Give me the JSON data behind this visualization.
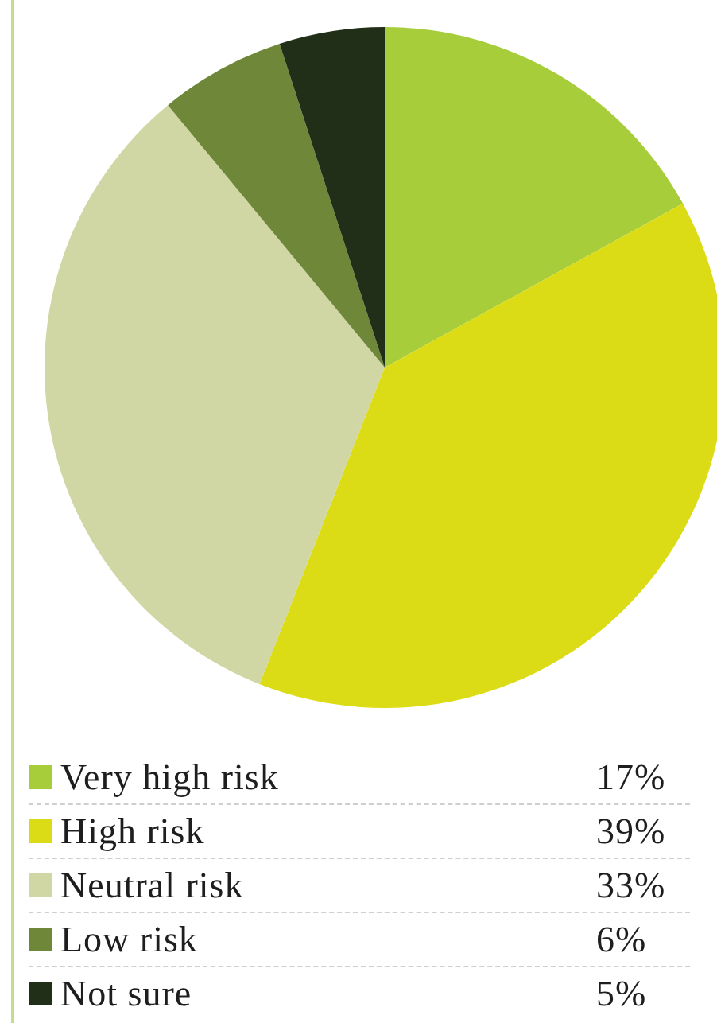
{
  "chart_data": {
    "type": "pie",
    "categories": [
      "Very high risk",
      "High risk",
      "Neutral risk",
      "Low risk",
      "Not sure"
    ],
    "values": [
      17,
      39,
      33,
      6,
      5
    ],
    "colors": [
      "#a8cd3a",
      "#dcdc16",
      "#d0d6a4",
      "#6f8739",
      "#222f18"
    ],
    "value_labels": [
      "17%",
      "39%",
      "33%",
      "6%",
      "5%"
    ],
    "legend": "bottom"
  }
}
